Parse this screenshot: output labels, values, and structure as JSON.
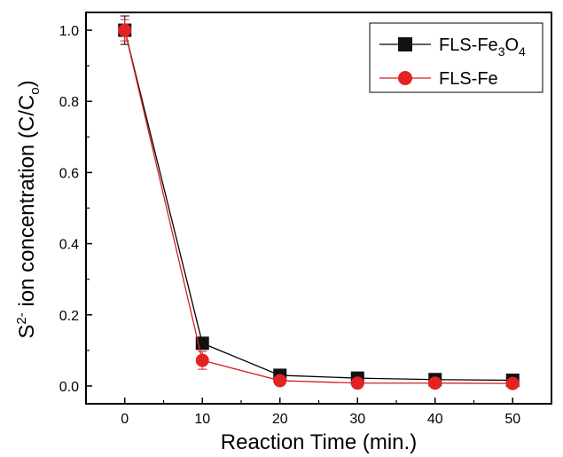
{
  "chart_data": {
    "type": "line",
    "xlabel": "Reaction Time (min.)",
    "ylabel": {
      "prefix": "S",
      "superscript": "2-",
      "middle": " ion concentration (C/C",
      "subscript": "o",
      "suffix": ")"
    },
    "xlim": [
      -5,
      55
    ],
    "ylim": [
      -0.05,
      1.05
    ],
    "xticks": [
      0,
      10,
      20,
      30,
      40,
      50
    ],
    "yticks": [
      0.0,
      0.2,
      0.4,
      0.6,
      0.8,
      1.0
    ],
    "xtick_labels": [
      "0",
      "10",
      "20",
      "30",
      "40",
      "50"
    ],
    "ytick_labels": [
      "0.0",
      "0.2",
      "0.4",
      "0.6",
      "0.8",
      "1.0"
    ],
    "grid": false,
    "legend_position": "top-right",
    "x": [
      0,
      10,
      20,
      30,
      40,
      50
    ],
    "series": [
      {
        "name": "FLS-Fe3O4",
        "name_parts": [
          {
            "t": "FLS-Fe",
            "s": "normal"
          },
          {
            "t": "3",
            "s": "sub"
          },
          {
            "t": "O",
            "s": "normal"
          },
          {
            "t": "4",
            "s": "sub"
          }
        ],
        "marker": "square",
        "color": "#000000",
        "marker_color": "#111111",
        "values": [
          1.0,
          0.12,
          0.03,
          0.022,
          0.018,
          0.016
        ],
        "errors": [
          0.04,
          0.01,
          0.005,
          0.005,
          0.005,
          0.005
        ]
      },
      {
        "name": "FLS-Fe",
        "name_parts": [
          {
            "t": "FLS-Fe",
            "s": "normal"
          }
        ],
        "marker": "circle",
        "color": "#d42020",
        "marker_color": "#e32222",
        "values": [
          1.0,
          0.072,
          0.015,
          0.008,
          0.008,
          0.007
        ],
        "errors": [
          0.03,
          0.025,
          0.008,
          0.006,
          0.006,
          0.005
        ]
      }
    ]
  }
}
